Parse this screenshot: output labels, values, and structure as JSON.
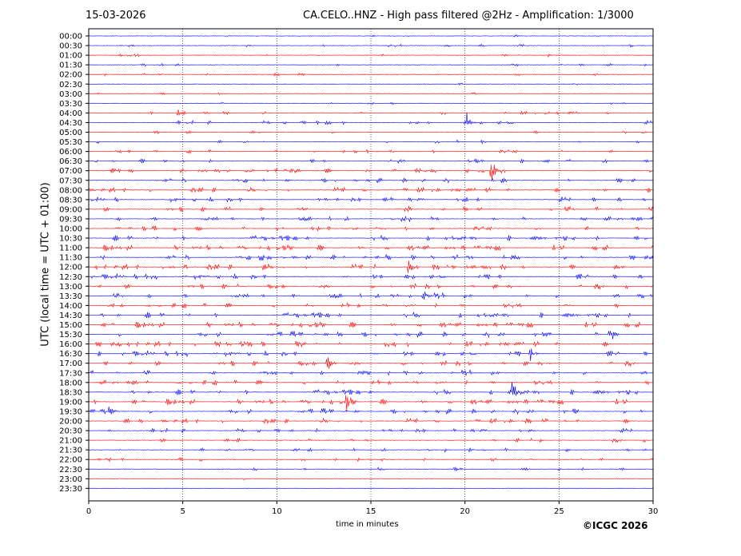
{
  "header": {
    "date": "15-03-2026",
    "title": "CA.CELO..HNZ - High pass filtered @2Hz - Amplification: 1/3000"
  },
  "footer": {
    "copyright": "©ICGC 2026"
  },
  "colors": {
    "trace_a": "#ff0000",
    "trace_b": "#0000ff",
    "grid": "#000000"
  },
  "chart_data": {
    "type": "line",
    "subtype": "helicorder",
    "title": "CA.CELO..HNZ - High pass filtered @2Hz - Amplification: 1/3000",
    "xlabel": "time in minutes",
    "ylabel": "UTC (local time = UTC + 01:00)",
    "xlim": [
      0,
      30
    ],
    "xticks": [
      0,
      5,
      10,
      15,
      20,
      25,
      30
    ],
    "grid_x": "dotted vertical lines at 5,10,15,20,25",
    "row_labels": [
      "00:00",
      "00:30",
      "01:00",
      "01:30",
      "02:00",
      "02:30",
      "03:00",
      "03:30",
      "04:00",
      "04:30",
      "05:00",
      "05:30",
      "06:00",
      "06:30",
      "07:00",
      "07:30",
      "08:00",
      "08:30",
      "09:00",
      "09:30",
      "10:00",
      "10:30",
      "11:00",
      "11:30",
      "12:00",
      "12:30",
      "13:00",
      "13:30",
      "14:00",
      "14:30",
      "15:00",
      "15:30",
      "16:00",
      "16:30",
      "17:00",
      "17:30",
      "18:00",
      "18:30",
      "19:00",
      "19:30",
      "20:00",
      "20:30",
      "21:00",
      "21:30",
      "22:00",
      "22:30",
      "23:00",
      "23:30"
    ],
    "row_colors": [
      "trace_b",
      "trace_b",
      "trace_a",
      "trace_b",
      "trace_a",
      "trace_b",
      "trace_a",
      "trace_b",
      "trace_a",
      "trace_b",
      "trace_a",
      "trace_b",
      "trace_a",
      "trace_b",
      "trace_a",
      "trace_b",
      "trace_a",
      "trace_b",
      "trace_a",
      "trace_b",
      "trace_a",
      "trace_b",
      "trace_a",
      "trace_b",
      "trace_a",
      "trace_b",
      "trace_a",
      "trace_b",
      "trace_a",
      "trace_b",
      "trace_a",
      "trace_b",
      "trace_a",
      "trace_b",
      "trace_a",
      "trace_b",
      "trace_a",
      "trace_b",
      "trace_a",
      "trace_b",
      "trace_a",
      "trace_b",
      "trace_a",
      "trace_b",
      "trace_a",
      "trace_b",
      "trace_a",
      "trace_b"
    ],
    "activity_level": [
      0.05,
      0.2,
      0.2,
      0.15,
      0.15,
      0.05,
      0.05,
      0.1,
      0.3,
      0.45,
      0.25,
      0.3,
      0.45,
      0.45,
      0.6,
      0.7,
      0.8,
      0.8,
      0.85,
      0.8,
      0.85,
      0.85,
      0.9,
      0.9,
      0.95,
      0.9,
      0.9,
      0.9,
      0.85,
      0.85,
      0.9,
      0.9,
      0.9,
      0.9,
      0.9,
      0.85,
      0.85,
      0.85,
      0.9,
      0.8,
      0.7,
      0.6,
      0.5,
      0.45,
      0.4,
      0.25,
      0.1,
      0.0
    ],
    "events": [
      {
        "row": 8,
        "x": 4.7,
        "amp": 0.6
      },
      {
        "row": 9,
        "x": 20.1,
        "amp": 1.0
      },
      {
        "row": 14,
        "x": 21.4,
        "amp": 1.6
      },
      {
        "row": 18,
        "x": 16.8,
        "amp": 0.8
      },
      {
        "row": 24,
        "x": 17.0,
        "amp": 1.2
      },
      {
        "row": 27,
        "x": 17.8,
        "amp": 0.8
      },
      {
        "row": 31,
        "x": 27.7,
        "amp": 1.3
      },
      {
        "row": 33,
        "x": 23.5,
        "amp": 1.0
      },
      {
        "row": 34,
        "x": 12.7,
        "amp": 1.1
      },
      {
        "row": 37,
        "x": 22.5,
        "amp": 1.5
      },
      {
        "row": 38,
        "x": 13.7,
        "amp": 1.0
      },
      {
        "row": 39,
        "x": 1.1,
        "amp": 0.9
      }
    ]
  }
}
